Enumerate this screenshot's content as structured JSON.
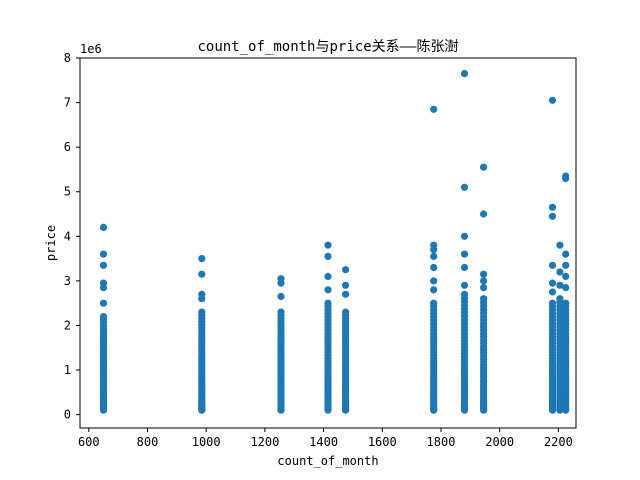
{
  "chart_data": {
    "type": "scatter",
    "title": "count_of_month与price关系——陈张澍",
    "xlabel": "count_of_month",
    "ylabel": "price",
    "y_offset_label": "1e6",
    "xlim": [
      570,
      2260
    ],
    "ylim": [
      -300000,
      8000000
    ],
    "x_ticks": [
      600,
      800,
      1000,
      1200,
      1400,
      1600,
      1800,
      2000,
      2200
    ],
    "x_tick_labels": [
      "600",
      "800",
      "1000",
      "1200",
      "1400",
      "1600",
      "1800",
      "2000",
      "2200"
    ],
    "y_ticks": [
      0,
      1000000,
      2000000,
      3000000,
      4000000,
      5000000,
      6000000,
      7000000,
      8000000
    ],
    "y_tick_labels": [
      "0",
      "1",
      "2",
      "3",
      "4",
      "5",
      "6",
      "7",
      "8"
    ],
    "grid": false,
    "marker_color": "#1f77b4",
    "columns": [
      {
        "x": 650,
        "y_min": 100000,
        "y_max": 2200000,
        "outliers": [
          2500000,
          2850000,
          2950000,
          3350000,
          3600000,
          4200000
        ]
      },
      {
        "x": 985,
        "y_min": 100000,
        "y_max": 2300000,
        "outliers": [
          2600000,
          2700000,
          3150000,
          3500000
        ]
      },
      {
        "x": 1255,
        "y_min": 100000,
        "y_max": 2300000,
        "outliers": [
          2650000,
          2950000,
          3050000
        ]
      },
      {
        "x": 1415,
        "y_min": 100000,
        "y_max": 2500000,
        "outliers": [
          2800000,
          3100000,
          3550000,
          3800000
        ]
      },
      {
        "x": 1475,
        "y_min": 100000,
        "y_max": 2300000,
        "outliers": [
          2700000,
          2900000,
          3250000
        ]
      },
      {
        "x": 1775,
        "y_min": 100000,
        "y_max": 2500000,
        "outliers": [
          2800000,
          3000000,
          3300000,
          3550000,
          3700000,
          3800000,
          6850000
        ]
      },
      {
        "x": 1880,
        "y_min": 100000,
        "y_max": 2700000,
        "outliers": [
          2900000,
          3300000,
          3600000,
          4000000,
          5100000,
          7650000
        ]
      },
      {
        "x": 1945,
        "y_min": 100000,
        "y_max": 2600000,
        "outliers": [
          2850000,
          3000000,
          3150000,
          4500000,
          5550000
        ]
      },
      {
        "x": 2180,
        "y_min": 100000,
        "y_max": 2500000,
        "outliers": [
          2750000,
          2950000,
          3350000,
          4450000,
          4650000,
          7050000
        ]
      },
      {
        "x": 2205,
        "y_min": 100000,
        "y_max": 2600000,
        "outliers": [
          2900000,
          3200000,
          3800000
        ]
      },
      {
        "x": 2225,
        "y_min": 100000,
        "y_max": 2500000,
        "outliers": [
          2850000,
          3100000,
          3350000,
          3600000,
          5300000,
          5350000
        ]
      }
    ]
  }
}
